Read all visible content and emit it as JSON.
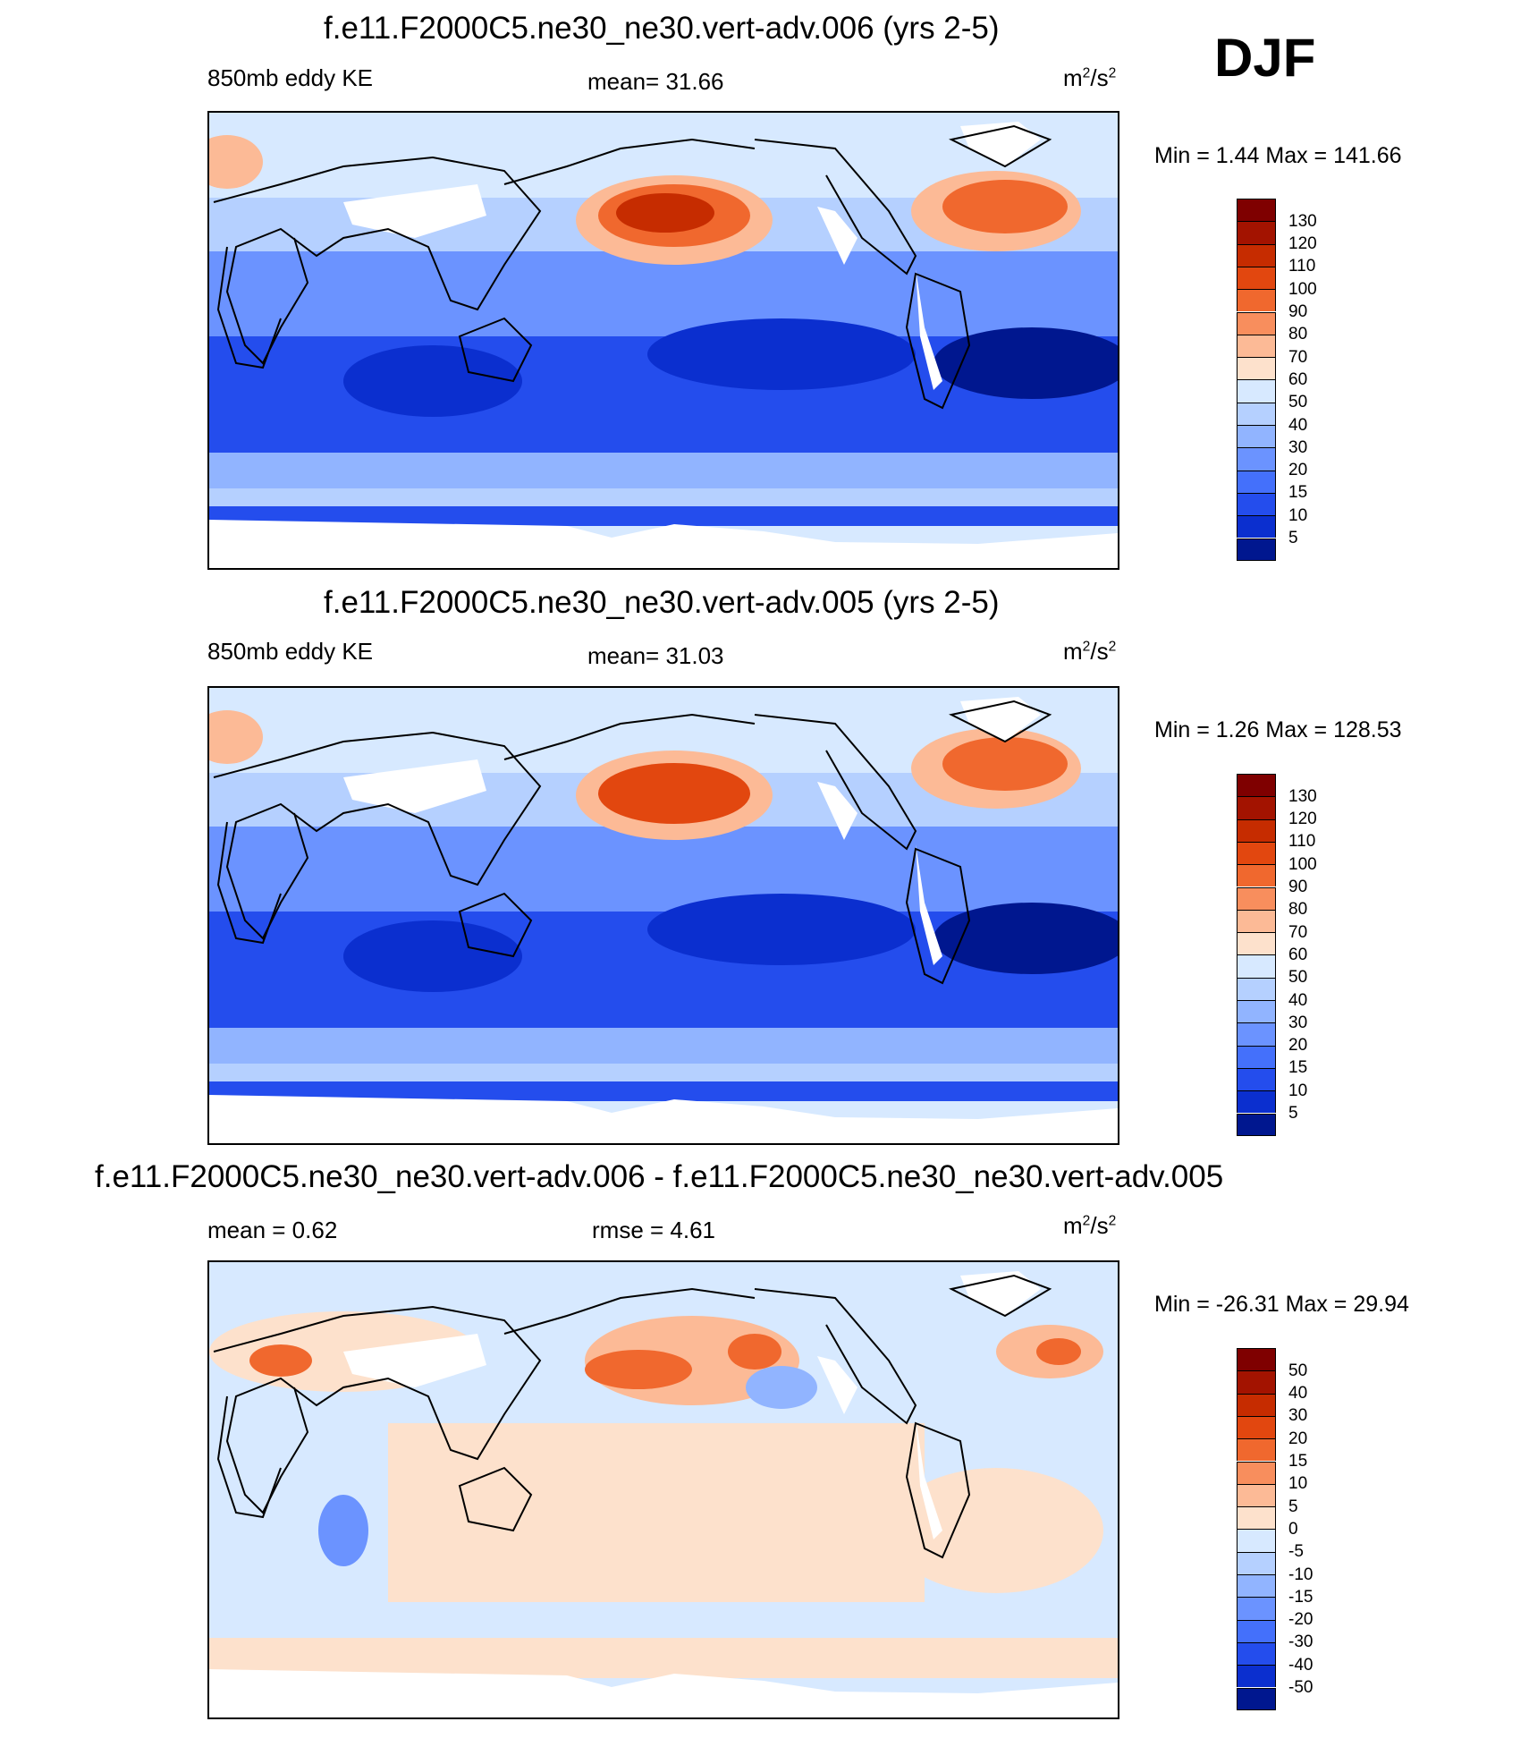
{
  "season": "DJF",
  "panels": [
    {
      "title": "f.e11.F2000C5.ne30_ne30.vert-adv.006 (yrs 2-5)",
      "left_label": "850mb eddy KE",
      "center_label": "mean=  31.66",
      "units_base": "m",
      "units_exp1": "2",
      "units_mid": "/s",
      "units_exp2": "2",
      "minmax": "Min =    1.44 Max = 141.66",
      "colorbar": {
        "labels": [
          "130",
          "120",
          "110",
          "100",
          "90",
          "80",
          "70",
          "60",
          "50",
          "40",
          "30",
          "20",
          "15",
          "10",
          "5"
        ],
        "colors": [
          "#7f0000",
          "#a31300",
          "#c62c00",
          "#e2470f",
          "#f0682e",
          "#f88e5d",
          "#fcba96",
          "#fde1cc",
          "#d7e9ff",
          "#b5d0ff",
          "#91b4ff",
          "#6b93ff",
          "#4470fb",
          "#244ded",
          "#0b2fcf",
          "#00178f"
        ]
      }
    },
    {
      "title": "f.e11.F2000C5.ne30_ne30.vert-adv.005 (yrs 2-5)",
      "left_label": "850mb eddy KE",
      "center_label": "mean=  31.03",
      "units_base": "m",
      "units_exp1": "2",
      "units_mid": "/s",
      "units_exp2": "2",
      "minmax": "Min =    1.26 Max = 128.53",
      "colorbar": {
        "labels": [
          "130",
          "120",
          "110",
          "100",
          "90",
          "80",
          "70",
          "60",
          "50",
          "40",
          "30",
          "20",
          "15",
          "10",
          "5"
        ],
        "colors": [
          "#7f0000",
          "#a31300",
          "#c62c00",
          "#e2470f",
          "#f0682e",
          "#f88e5d",
          "#fcba96",
          "#fde1cc",
          "#d7e9ff",
          "#b5d0ff",
          "#91b4ff",
          "#6b93ff",
          "#4470fb",
          "#244ded",
          "#0b2fcf",
          "#00178f"
        ]
      }
    },
    {
      "title": "f.e11.F2000C5.ne30_ne30.vert-adv.006 - f.e11.F2000C5.ne30_ne30.vert-adv.005",
      "left_label": "mean =   0.62",
      "center_label": "rmse =   4.61",
      "units_base": "m",
      "units_exp1": "2",
      "units_mid": "/s",
      "units_exp2": "2",
      "minmax": "Min = -26.31 Max =  29.94",
      "colorbar": {
        "labels": [
          "50",
          "40",
          "30",
          "20",
          "15",
          "10",
          "5",
          "0",
          "-5",
          "-10",
          "-15",
          "-20",
          "-30",
          "-40",
          "-50"
        ],
        "colors": [
          "#7f0000",
          "#a31300",
          "#c62c00",
          "#e2470f",
          "#f0682e",
          "#f88e5d",
          "#fcba96",
          "#fde1cc",
          "#d7e9ff",
          "#b5d0ff",
          "#91b4ff",
          "#6b93ff",
          "#4470fb",
          "#244ded",
          "#0b2fcf",
          "#00178f"
        ]
      }
    }
  ]
}
